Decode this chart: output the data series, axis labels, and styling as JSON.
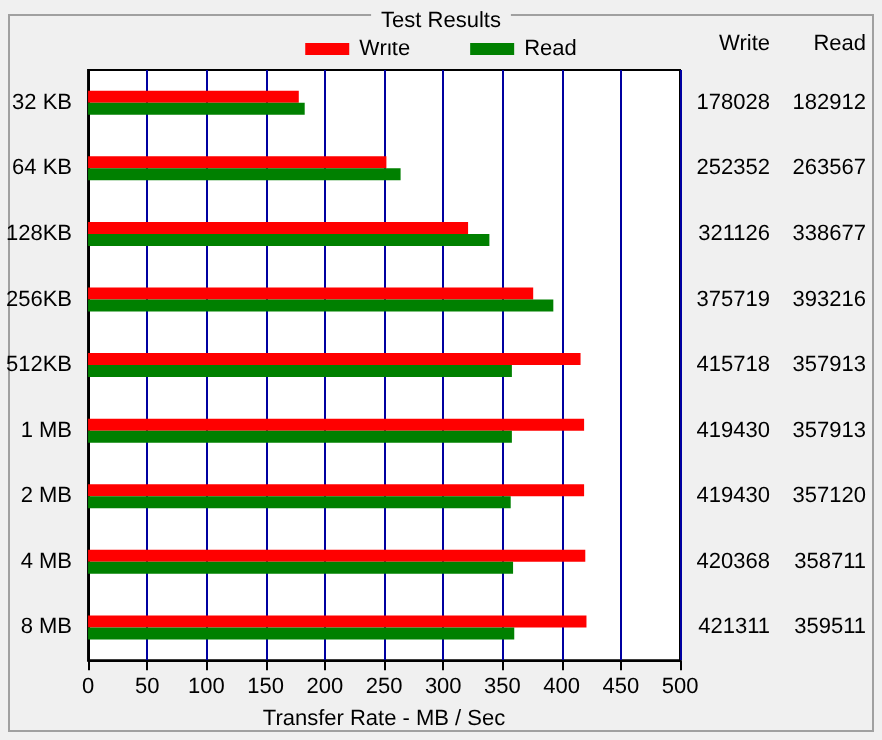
{
  "chart_data": {
    "type": "bar",
    "orientation": "horizontal",
    "title": "Test Results",
    "xlabel": "Transfer Rate - MB / Sec",
    "categories": [
      "32 KB",
      "64 KB",
      "128KB",
      "256KB",
      "512KB",
      "1 MB",
      "2 MB",
      "4 MB",
      "8 MB"
    ],
    "series": [
      {
        "name": "Write",
        "color": "#ff0000",
        "values": [
          178,
          252,
          321,
          376,
          416,
          419,
          419,
          420,
          421
        ]
      },
      {
        "name": "Read",
        "color": "#008000",
        "values": [
          183,
          264,
          339,
          393,
          358,
          358,
          357,
          359,
          360
        ]
      }
    ],
    "annotations": [
      "178028",
      "182912",
      "252352",
      "263567",
      "321126",
      "338677",
      "375719",
      "393216",
      "415718",
      "357913",
      "419430",
      "357913",
      "419430",
      "357120",
      "420368",
      "358711",
      "421311",
      "359511"
    ],
    "xlim": [
      0,
      500
    ],
    "xticks": [
      0,
      50,
      100,
      150,
      200,
      250,
      300,
      350,
      400,
      450,
      500
    ],
    "grid": "x",
    "legend": "top"
  }
}
